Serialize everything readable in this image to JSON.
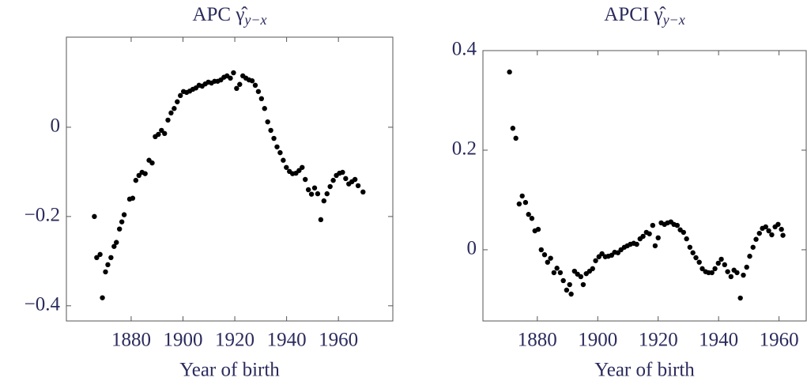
{
  "chart_data": [
    {
      "type": "scatter",
      "title": "APC γ̂",
      "title_subscript": "y−x",
      "x_label": "Year of birth",
      "color": "#000000",
      "xlim": [
        1855,
        1981
      ],
      "ylim": [
        -0.434,
        0.2018
      ],
      "xticks": [
        1880,
        1900,
        1920,
        1940,
        1960
      ],
      "yticks": [
        {
          "value": -0.4,
          "label": "−0.4"
        },
        {
          "value": -0.2,
          "label": "−0.2"
        },
        0
      ],
      "x": [
        1865.8,
        1866.7,
        1868.0,
        1868.9,
        1870.1,
        1871.0,
        1872.2,
        1873.4,
        1874.3,
        1875.5,
        1876.4,
        1877.3,
        1879.4,
        1880.6,
        1881.8,
        1883.0,
        1884.2,
        1885.4,
        1886.9,
        1888.1,
        1889.3,
        1890.5,
        1891.7,
        1892.9,
        1894.2,
        1895.4,
        1896.6,
        1897.8,
        1899.0,
        1900.2,
        1901.4,
        1902.6,
        1903.8,
        1905.0,
        1906.2,
        1907.4,
        1908.6,
        1909.8,
        1911.0,
        1912.2,
        1913.4,
        1914.6,
        1915.8,
        1917.0,
        1918.3,
        1919.5,
        1920.7,
        1921.9,
        1923.1,
        1924.3,
        1925.5,
        1926.7,
        1927.9,
        1929.1,
        1930.3,
        1931.5,
        1932.7,
        1933.9,
        1935.1,
        1936.3,
        1937.5,
        1938.7,
        1939.9,
        1941.1,
        1942.3,
        1943.6,
        1944.8,
        1946.0,
        1947.2,
        1948.4,
        1949.6,
        1950.8,
        1952.0,
        1953.2,
        1954.4,
        1955.6,
        1956.8,
        1958.0,
        1959.2,
        1960.4,
        1961.6,
        1962.8,
        1964.0,
        1965.2,
        1966.4,
        1967.6,
        1969.5
      ],
      "values": [
        -0.2,
        -0.292,
        -0.285,
        -0.382,
        -0.324,
        -0.308,
        -0.292,
        -0.267,
        -0.258,
        -0.228,
        -0.212,
        -0.196,
        -0.161,
        -0.159,
        -0.119,
        -0.108,
        -0.101,
        -0.104,
        -0.074,
        -0.08,
        -0.021,
        -0.016,
        -0.007,
        -0.014,
        0.016,
        0.032,
        0.042,
        0.057,
        0.071,
        0.08,
        0.078,
        0.081,
        0.085,
        0.088,
        0.094,
        0.092,
        0.097,
        0.101,
        0.099,
        0.103,
        0.103,
        0.106,
        0.112,
        0.115,
        0.11,
        0.122,
        0.087,
        0.096,
        0.115,
        0.11,
        0.106,
        0.104,
        0.094,
        0.08,
        0.064,
        0.042,
        0.012,
        -0.007,
        -0.025,
        -0.044,
        -0.057,
        -0.074,
        -0.09,
        -0.099,
        -0.104,
        -0.103,
        -0.097,
        -0.09,
        -0.117,
        -0.14,
        -0.15,
        -0.136,
        -0.149,
        -0.207,
        -0.165,
        -0.149,
        -0.133,
        -0.119,
        -0.108,
        -0.103,
        -0.101,
        -0.115,
        -0.127,
        -0.122,
        -0.117,
        -0.131,
        -0.145
      ]
    },
    {
      "type": "scatter",
      "title": "APCI γ̂",
      "title_subscript": "y−x",
      "x_label": "Year of birth",
      "color": "#000000",
      "xlim": [
        1862,
        1969
      ],
      "ylim": [
        -0.143,
        0.4
      ],
      "xticks": [
        1880,
        1900,
        1920,
        1940,
        1960
      ],
      "yticks": [
        0,
        0.2,
        0.4
      ],
      "x": [
        1870.8,
        1871.9,
        1872.9,
        1874.0,
        1875.0,
        1876.1,
        1877.1,
        1878.2,
        1879.2,
        1880.3,
        1881.3,
        1882.4,
        1883.4,
        1884.4,
        1885.5,
        1886.5,
        1887.6,
        1888.6,
        1889.7,
        1890.7,
        1891.2,
        1892.3,
        1893.3,
        1894.4,
        1895.2,
        1896.2,
        1897.3,
        1898.3,
        1899.3,
        1900.4,
        1901.4,
        1902.5,
        1903.5,
        1904.6,
        1905.6,
        1906.7,
        1907.7,
        1908.8,
        1909.8,
        1910.8,
        1911.9,
        1912.9,
        1914.0,
        1915.0,
        1916.1,
        1917.1,
        1918.2,
        1919.0,
        1920.0,
        1921.0,
        1922.1,
        1923.1,
        1924.2,
        1925.2,
        1926.3,
        1927.3,
        1928.4,
        1929.4,
        1930.5,
        1931.5,
        1932.5,
        1933.6,
        1934.6,
        1935.7,
        1936.7,
        1937.8,
        1938.8,
        1939.9,
        1940.9,
        1942.0,
        1943.0,
        1944.1,
        1945.1,
        1946.1,
        1947.2,
        1948.2,
        1949.3,
        1950.3,
        1951.4,
        1952.4,
        1953.5,
        1954.5,
        1955.6,
        1956.6,
        1957.6,
        1958.7,
        1959.7,
        1960.8,
        1961.3
      ],
      "values": [
        0.357,
        0.244,
        0.224,
        0.092,
        0.108,
        0.095,
        0.071,
        0.063,
        0.038,
        0.041,
        0.0,
        -0.01,
        -0.025,
        -0.017,
        -0.046,
        -0.037,
        -0.046,
        -0.062,
        -0.081,
        -0.07,
        -0.089,
        -0.043,
        -0.049,
        -0.054,
        -0.07,
        -0.048,
        -0.043,
        -0.038,
        -0.022,
        -0.014,
        -0.008,
        -0.014,
        -0.013,
        -0.011,
        -0.005,
        -0.006,
        0.0,
        0.005,
        0.008,
        0.011,
        0.013,
        0.011,
        0.022,
        0.027,
        0.035,
        0.032,
        0.049,
        0.008,
        0.024,
        0.054,
        0.051,
        0.054,
        0.056,
        0.051,
        0.049,
        0.04,
        0.035,
        0.022,
        0.005,
        -0.006,
        -0.016,
        -0.025,
        -0.038,
        -0.044,
        -0.046,
        -0.046,
        -0.038,
        -0.027,
        -0.019,
        -0.03,
        -0.044,
        -0.054,
        -0.041,
        -0.046,
        -0.097,
        -0.051,
        -0.035,
        -0.013,
        0.005,
        0.021,
        0.033,
        0.043,
        0.046,
        0.038,
        0.03,
        0.046,
        0.051,
        0.041,
        0.029
      ]
    }
  ]
}
